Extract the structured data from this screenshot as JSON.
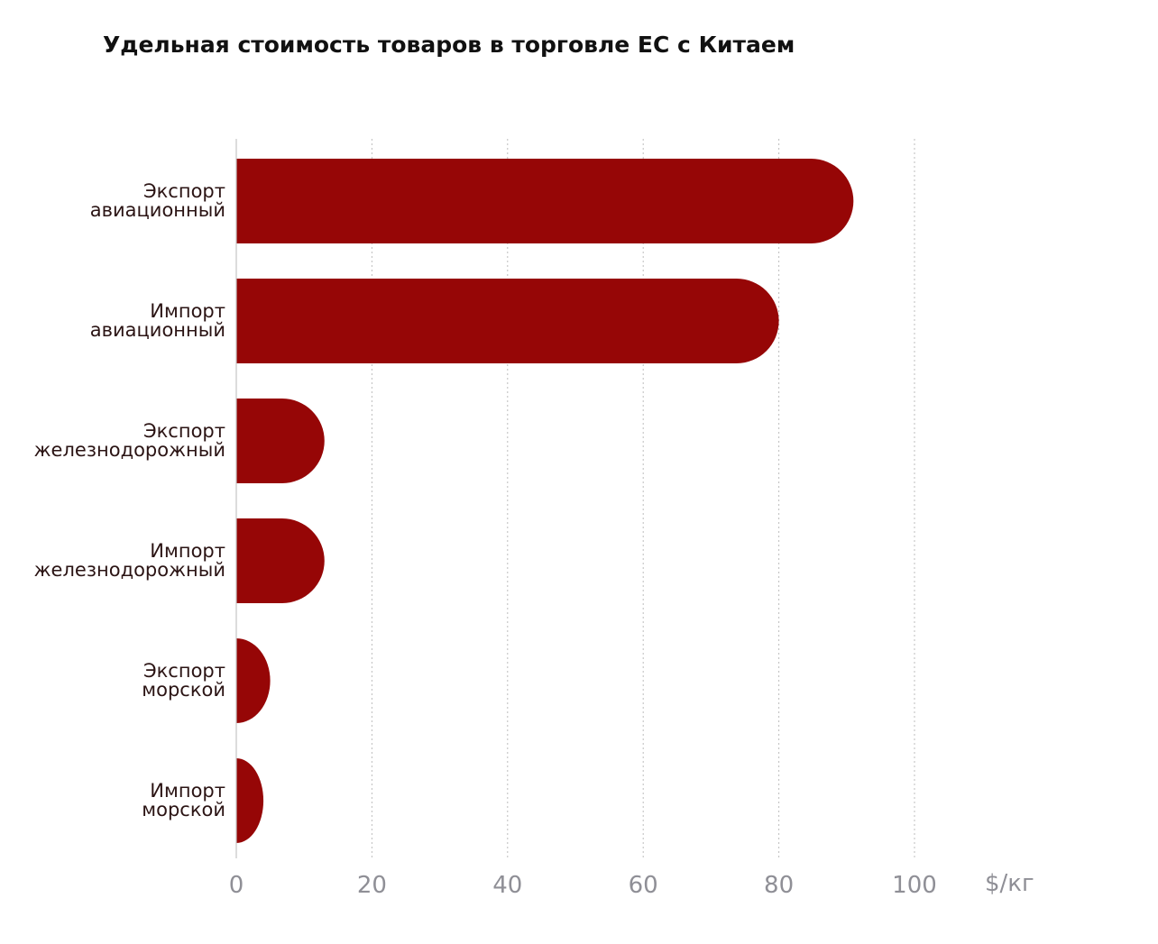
{
  "title": "Удельная стоимость товаров в торговле ЕС с Китаем",
  "colors": {
    "bar": "#960606",
    "grid": "#bdbdbd",
    "axis": "#c4c4c4",
    "category_text": "#2b1414",
    "tick_text": "#8f8f96"
  },
  "chart_data": {
    "type": "bar",
    "orientation": "horizontal",
    "title": "Удельная стоимость товаров в торговле ЕС с Китаем",
    "categories": [
      [
        "Экспорт",
        "авиационный"
      ],
      [
        "Импорт",
        "авиационный"
      ],
      [
        "Экспорт",
        "железнодорожный"
      ],
      [
        "Импорт",
        "железнодорожный"
      ],
      [
        "Экспорт",
        "морской"
      ],
      [
        "Импорт",
        "морской"
      ]
    ],
    "values": [
      91,
      80,
      13,
      13,
      5,
      4
    ],
    "xlim": [
      0,
      100
    ],
    "xticks": [
      0,
      20,
      40,
      60,
      80,
      100
    ],
    "unit": "$/кг",
    "grid": "vertical dotted"
  }
}
